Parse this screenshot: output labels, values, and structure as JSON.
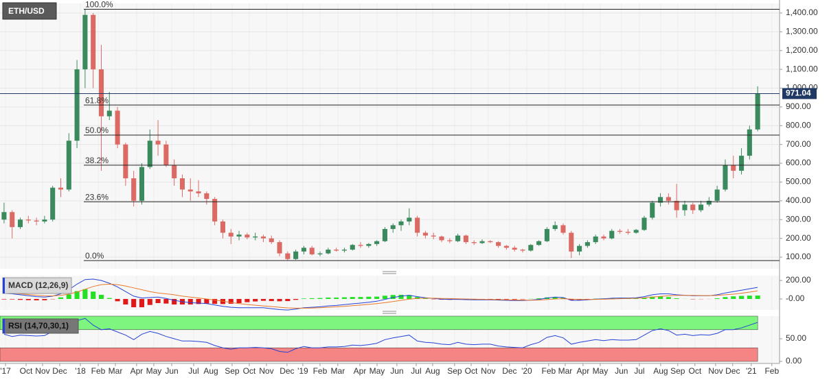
{
  "chart_data": [
    {
      "type": "candlestick",
      "title": "ETH/USD",
      "up_color": "#3b8a5e",
      "down_color": "#dc6a64",
      "grid": true,
      "xlim": [
        0,
        96.2
      ],
      "xticks": [
        {
          "value": 0.68,
          "label": "'17"
        },
        {
          "value": 3.22,
          "label": "Oct"
        },
        {
          "value": 5.25,
          "label": "Nov"
        },
        {
          "value": 7.37,
          "label": "Dec"
        },
        {
          "value": 9.92,
          "label": "'18"
        },
        {
          "value": 12.12,
          "label": "Feb"
        },
        {
          "value": 14.24,
          "label": "Mar"
        },
        {
          "value": 16.86,
          "label": "Apr"
        },
        {
          "value": 18.98,
          "label": "May"
        },
        {
          "value": 21.19,
          "label": "Jun"
        },
        {
          "value": 23.9,
          "label": "Jul"
        },
        {
          "value": 26.02,
          "label": "Aug"
        },
        {
          "value": 28.64,
          "label": "Sep"
        },
        {
          "value": 30.76,
          "label": "Oct"
        },
        {
          "value": 32.88,
          "label": "Nov"
        },
        {
          "value": 35.42,
          "label": "Dec"
        },
        {
          "value": 37.37,
          "label": "'19"
        },
        {
          "value": 39.49,
          "label": "Feb"
        },
        {
          "value": 41.69,
          "label": "Mar"
        },
        {
          "value": 44.41,
          "label": "Apr"
        },
        {
          "value": 46.53,
          "label": "May"
        },
        {
          "value": 48.98,
          "label": "Jun"
        },
        {
          "value": 51.36,
          "label": "Jul"
        },
        {
          "value": 53.39,
          "label": "Aug"
        },
        {
          "value": 56.1,
          "label": "Sep"
        },
        {
          "value": 58.14,
          "label": "Oct"
        },
        {
          "value": 60.25,
          "label": "Nov"
        },
        {
          "value": 62.88,
          "label": "Dec"
        },
        {
          "value": 65,
          "label": "'20"
        },
        {
          "value": 67.71,
          "label": "Feb"
        },
        {
          "value": 69.75,
          "label": "Mar"
        },
        {
          "value": 71.95,
          "label": "Apr"
        },
        {
          "value": 74.07,
          "label": "May"
        },
        {
          "value": 76.69,
          "label": "Jun"
        },
        {
          "value": 78.9,
          "label": "Jul"
        },
        {
          "value": 81.53,
          "label": "Aug"
        },
        {
          "value": 83.64,
          "label": "Sep"
        },
        {
          "value": 85.76,
          "label": "Oct"
        },
        {
          "value": 88.31,
          "label": "Nov"
        },
        {
          "value": 90.42,
          "label": "Dec"
        },
        {
          "value": 92.71,
          "label": "'21"
        },
        {
          "value": 95.25,
          "label": "Feb"
        }
      ],
      "ylim": [
        38,
        1451
      ],
      "yticks": [
        {
          "value": 100,
          "label": "100.00"
        },
        {
          "value": 200,
          "label": "200.00"
        },
        {
          "value": 300,
          "label": "300.00"
        },
        {
          "value": 400,
          "label": "400.00"
        },
        {
          "value": 500,
          "label": "500.00"
        },
        {
          "value": 600,
          "label": "600.00"
        },
        {
          "value": 700,
          "label": "700.00"
        },
        {
          "value": 800,
          "label": "800.00"
        },
        {
          "value": 900,
          "label": "900.00"
        },
        {
          "value": 1000,
          "label": "1,000.00"
        },
        {
          "value": 1100,
          "label": "1,100.00"
        },
        {
          "value": 1200,
          "label": "1,200.00"
        },
        {
          "value": 1300,
          "label": "1,300.00"
        },
        {
          "value": 1400,
          "label": "1,400.00"
        }
      ],
      "levels": [
        {
          "label": "100.0%",
          "value": 1420
        },
        {
          "label": "61.8%",
          "value": 910
        },
        {
          "label": "50.0%",
          "value": 750
        },
        {
          "label": "38.2%",
          "value": 590
        },
        {
          "label": "23.6%",
          "value": 395
        },
        {
          "label": "0.0%",
          "value": 82
        }
      ],
      "last_price": 971.04,
      "ohlc": [
        [
          300,
          390,
          280,
          340
        ],
        [
          340,
          350,
          200,
          260
        ],
        [
          260,
          310,
          250,
          300
        ],
        [
          300,
          320,
          280,
          295
        ],
        [
          295,
          310,
          270,
          290
        ],
        [
          290,
          320,
          280,
          300
        ],
        [
          300,
          480,
          290,
          470
        ],
        [
          470,
          520,
          420,
          460
        ],
        [
          460,
          760,
          450,
          720
        ],
        [
          720,
          1150,
          680,
          1100
        ],
        [
          1100,
          1420,
          1000,
          1390
        ],
        [
          1390,
          1400,
          1000,
          1100
        ],
        [
          1100,
          1230,
          560,
          850
        ],
        [
          850,
          980,
          830,
          880
        ],
        [
          880,
          900,
          680,
          700
        ],
        [
          700,
          710,
          480,
          520
        ],
        [
          520,
          560,
          370,
          400
        ],
        [
          400,
          600,
          380,
          580
        ],
        [
          580,
          780,
          570,
          720
        ],
        [
          720,
          830,
          640,
          700
        ],
        [
          700,
          720,
          580,
          590
        ],
        [
          590,
          620,
          480,
          520
        ],
        [
          520,
          540,
          420,
          460
        ],
        [
          460,
          520,
          400,
          450
        ],
        [
          450,
          510,
          420,
          440
        ],
        [
          440,
          450,
          380,
          410
        ],
        [
          410,
          420,
          270,
          290
        ],
        [
          290,
          300,
          200,
          230
        ],
        [
          230,
          250,
          170,
          210
        ],
        [
          210,
          240,
          190,
          220
        ],
        [
          220,
          230,
          195,
          205
        ],
        [
          205,
          230,
          190,
          210
        ],
        [
          210,
          220,
          180,
          200
        ],
        [
          200,
          215,
          170,
          180
        ],
        [
          180,
          190,
          105,
          120
        ],
        [
          120,
          130,
          82,
          90
        ],
        [
          90,
          140,
          85,
          130
        ],
        [
          130,
          160,
          115,
          150
        ],
        [
          150,
          160,
          110,
          115
        ],
        [
          115,
          130,
          105,
          120
        ],
        [
          120,
          150,
          115,
          140
        ],
        [
          140,
          150,
          130,
          135
        ],
        [
          135,
          150,
          125,
          140
        ],
        [
          140,
          170,
          135,
          165
        ],
        [
          165,
          180,
          150,
          160
        ],
        [
          160,
          175,
          150,
          170
        ],
        [
          170,
          190,
          160,
          185
        ],
        [
          185,
          260,
          180,
          250
        ],
        [
          250,
          280,
          230,
          270
        ],
        [
          270,
          300,
          240,
          290
        ],
        [
          290,
          360,
          270,
          310
        ],
        [
          310,
          320,
          210,
          230
        ],
        [
          230,
          240,
          200,
          215
        ],
        [
          215,
          230,
          195,
          210
        ],
        [
          210,
          215,
          180,
          190
        ],
        [
          190,
          200,
          175,
          185
        ],
        [
          185,
          225,
          180,
          215
        ],
        [
          215,
          220,
          170,
          180
        ],
        [
          180,
          190,
          165,
          175
        ],
        [
          175,
          195,
          170,
          185
        ],
        [
          185,
          190,
          175,
          180
        ],
        [
          180,
          185,
          150,
          160
        ],
        [
          160,
          165,
          140,
          150
        ],
        [
          150,
          160,
          130,
          140
        ],
        [
          140,
          145,
          125,
          135
        ],
        [
          135,
          170,
          130,
          165
        ],
        [
          165,
          190,
          160,
          185
        ],
        [
          185,
          260,
          180,
          250
        ],
        [
          250,
          290,
          240,
          270
        ],
        [
          270,
          280,
          220,
          230
        ],
        [
          230,
          240,
          95,
          130
        ],
        [
          130,
          170,
          110,
          160
        ],
        [
          160,
          190,
          150,
          180
        ],
        [
          180,
          220,
          170,
          210
        ],
        [
          210,
          220,
          190,
          200
        ],
        [
          200,
          250,
          195,
          240
        ],
        [
          240,
          250,
          225,
          235
        ],
        [
          235,
          250,
          220,
          230
        ],
        [
          230,
          250,
          225,
          245
        ],
        [
          245,
          320,
          240,
          310
        ],
        [
          310,
          400,
          300,
          390
        ],
        [
          390,
          440,
          370,
          420
        ],
        [
          420,
          440,
          380,
          400
        ],
        [
          400,
          490,
          310,
          350
        ],
        [
          350,
          400,
          320,
          380
        ],
        [
          380,
          390,
          330,
          350
        ],
        [
          350,
          400,
          340,
          380
        ],
        [
          380,
          420,
          370,
          400
        ],
        [
          400,
          480,
          390,
          460
        ],
        [
          460,
          620,
          450,
          590
        ],
        [
          590,
          640,
          520,
          560
        ],
        [
          560,
          680,
          540,
          640
        ],
        [
          640,
          800,
          620,
          780
        ],
        [
          780,
          1010,
          770,
          971.04
        ]
      ]
    },
    {
      "type": "macd",
      "title": "MACD (12,26,9)",
      "ylim": [
        -119,
        252
      ],
      "yticks": [
        {
          "value": 200,
          "label": "200.00"
        },
        {
          "value": 0,
          "label": "-0.00"
        }
      ],
      "series": [
        {
          "color": "#2442d6",
          "values": [
            60,
            55,
            45,
            35,
            25,
            20,
            30,
            55,
            100,
            160,
            210,
            215,
            200,
            170,
            130,
            80,
            30,
            10,
            15,
            20,
            5,
            -15,
            -30,
            -40,
            -45,
            -50,
            -65,
            -80,
            -90,
            -95,
            -95,
            -95,
            -95,
            -105,
            -115,
            -120,
            -110,
            -95,
            -90,
            -85,
            -75,
            -70,
            -62,
            -52,
            -45,
            -35,
            -25,
            -5,
            15,
            30,
            40,
            25,
            12,
            5,
            -2,
            -5,
            -5,
            -8,
            -10,
            -10,
            -10,
            -12,
            -15,
            -18,
            -18,
            -12,
            -5,
            10,
            20,
            15,
            -15,
            -15,
            -10,
            -2,
            2,
            8,
            10,
            10,
            12,
            25,
            45,
            55,
            55,
            45,
            40,
            35,
            35,
            35,
            45,
            65,
            80,
            95,
            110,
            125
          ]
        },
        {
          "color": "#e8792a",
          "values": [
            65,
            60,
            55,
            48,
            40,
            34,
            33,
            38,
            52,
            75,
            105,
            135,
            155,
            160,
            155,
            140,
            120,
            100,
            80,
            65,
            55,
            45,
            30,
            20,
            10,
            0,
            -12,
            -25,
            -38,
            -50,
            -60,
            -68,
            -75,
            -82,
            -90,
            -97,
            -100,
            -100,
            -98,
            -95,
            -90,
            -85,
            -80,
            -73,
            -66,
            -59,
            -50,
            -40,
            -28,
            -15,
            -2,
            5,
            8,
            8,
            6,
            4,
            2,
            0,
            -2,
            -4,
            -6,
            -8,
            -10,
            -12,
            -14,
            -14,
            -12,
            -7,
            0,
            3,
            -2,
            -5,
            -6,
            -5,
            -3,
            0,
            3,
            5,
            7,
            12,
            20,
            28,
            35,
            38,
            39,
            38,
            37,
            36,
            38,
            45,
            52,
            62,
            74,
            88
          ]
        }
      ],
      "histogram": {
        "up_color": "#22e022",
        "down_color": "#e01818",
        "values": [
          -5,
          -5,
          -10,
          -13,
          -15,
          -14,
          -3,
          17,
          48,
          85,
          105,
          80,
          45,
          10,
          -25,
          -60,
          -90,
          -90,
          -65,
          -45,
          -50,
          -60,
          -60,
          -60,
          -55,
          -50,
          -53,
          -55,
          -52,
          -45,
          -35,
          -27,
          -20,
          -23,
          -25,
          -23,
          -10,
          5,
          8,
          10,
          15,
          15,
          18,
          21,
          21,
          24,
          25,
          35,
          43,
          45,
          42,
          20,
          4,
          -3,
          -8,
          -9,
          -7,
          -8,
          -8,
          -6,
          -4,
          -4,
          -5,
          -6,
          -4,
          2,
          7,
          17,
          20,
          12,
          -13,
          -10,
          -4,
          3,
          5,
          8,
          7,
          5,
          5,
          13,
          25,
          27,
          20,
          7,
          1,
          -3,
          -2,
          -1,
          7,
          20,
          28,
          33,
          36,
          37
        ]
      }
    },
    {
      "type": "rsi",
      "title": "RSI (14,70,30,1)",
      "ylim": [
        -3,
        100
      ],
      "yticks": [
        {
          "value": 50,
          "label": "50.00"
        },
        {
          "value": 0,
          "label": "0.00"
        }
      ],
      "bands": [
        {
          "from": 70,
          "to": 100,
          "color": "#7ef57e"
        },
        {
          "from": 0,
          "to": 30,
          "color": "#f58585"
        }
      ],
      "series": [
        {
          "color": "#2442d6",
          "values": [
            60,
            55,
            58,
            57,
            56,
            57,
            66,
            65,
            80,
            90,
            95,
            80,
            70,
            72,
            65,
            58,
            48,
            60,
            66,
            62,
            55,
            50,
            45,
            45,
            44,
            42,
            35,
            30,
            27,
            30,
            30,
            31,
            30,
            28,
            22,
            20,
            28,
            33,
            30,
            30,
            32,
            32,
            33,
            36,
            35,
            37,
            40,
            48,
            52,
            55,
            58,
            45,
            42,
            41,
            38,
            37,
            42,
            38,
            37,
            38,
            38,
            34,
            32,
            31,
            30,
            37,
            42,
            53,
            57,
            52,
            38,
            42,
            45,
            48,
            46,
            48,
            47,
            47,
            48,
            58,
            68,
            72,
            68,
            58,
            60,
            57,
            59,
            58,
            62,
            70,
            70,
            74,
            80,
            86
          ]
        }
      ]
    }
  ]
}
